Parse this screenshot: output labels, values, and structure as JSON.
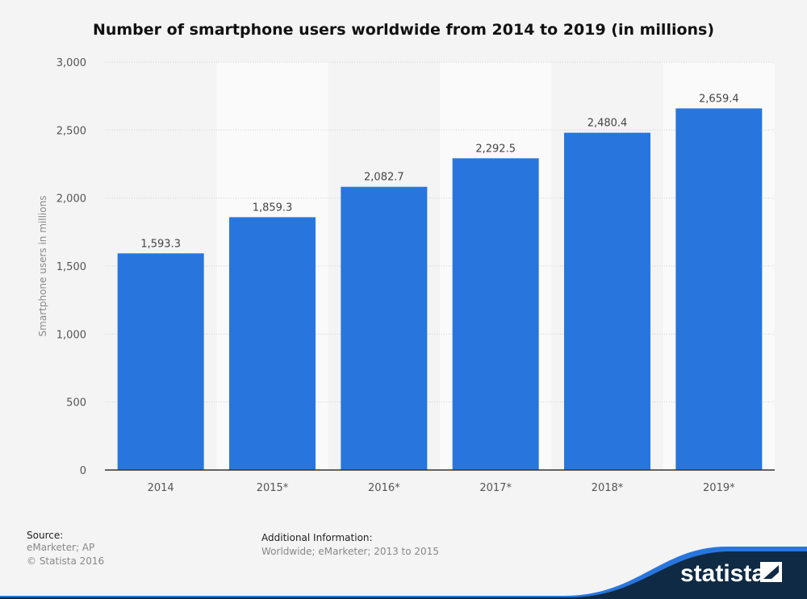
{
  "chart_data": {
    "type": "bar",
    "title": "Number of smartphone users worldwide from 2014 to 2019 (in millions)",
    "categories": [
      "2014",
      "2015*",
      "2016*",
      "2017*",
      "2018*",
      "2019*"
    ],
    "values": [
      1593.3,
      1859.3,
      2082.7,
      2292.5,
      2480.4,
      2659.4
    ],
    "data_labels": [
      "1,593.3",
      "1,859.3",
      "2,082.7",
      "2,292.5",
      "2,480.4",
      "2,659.4"
    ],
    "xlabel": "",
    "ylabel": "Smartphone users in millions",
    "ylim": [
      0,
      3000
    ],
    "yticks": [
      0,
      500,
      1000,
      1500,
      2000,
      2500,
      3000
    ],
    "ytick_labels": [
      "0",
      "500",
      "1,000",
      "1,500",
      "2,000",
      "2,500",
      "3,000"
    ],
    "grid": true,
    "bar_color": "#2876dd"
  },
  "footer": {
    "source_label": "Source:",
    "source_value": "eMarketer; AP",
    "copyright": "© Statista 2016",
    "additional_label": "Additional Information:",
    "additional_value": "Worldwide; eMarketer; 2013 to 2015",
    "logo_text": "statista"
  }
}
